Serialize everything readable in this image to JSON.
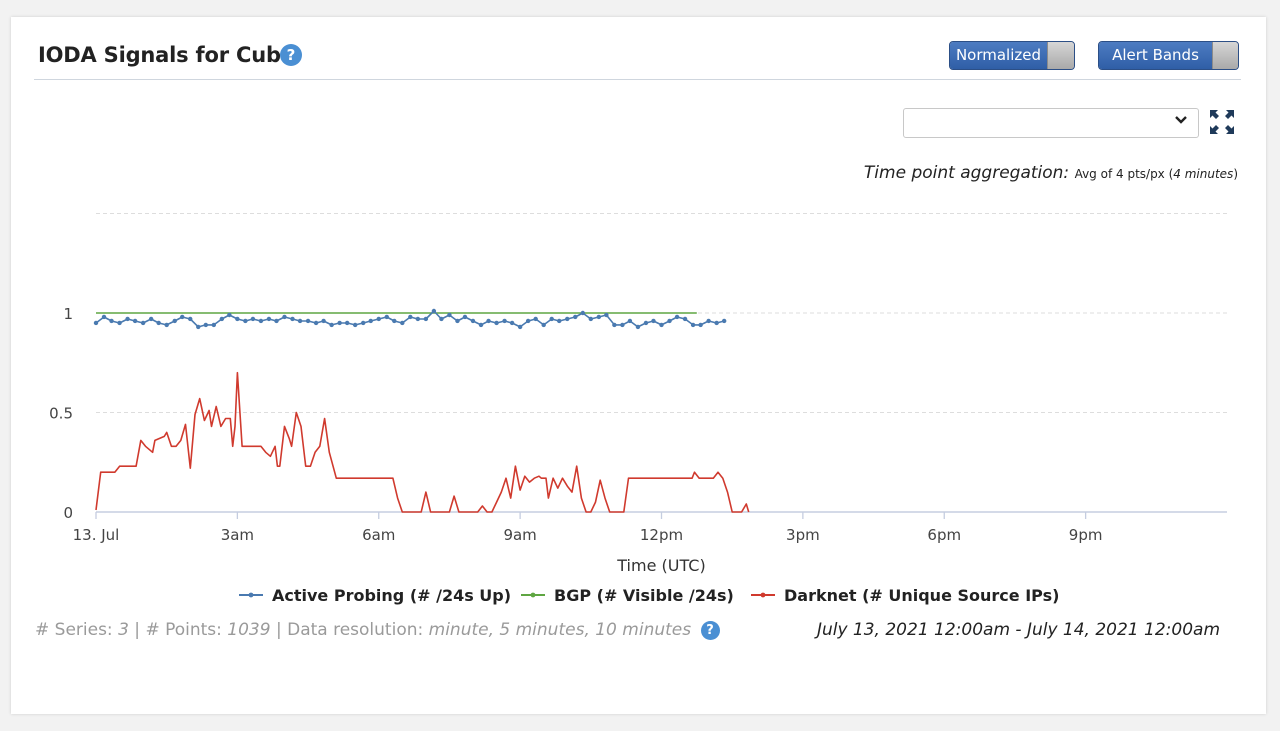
{
  "header": {
    "title": "IODA Signals for Cuba",
    "help_glyph": "?",
    "toggles": [
      {
        "label": "Normalized",
        "state": "on"
      },
      {
        "label": "Alert Bands",
        "state": "on"
      }
    ],
    "select_value": "",
    "expand_icon": "fullscreen-expand-icon"
  },
  "aggregation": {
    "label": "Time point aggregation:",
    "value_prefix": "Avg of 4 pts/px (",
    "value_italic": "4 minutes",
    "value_suffix": ")"
  },
  "footer": {
    "series_label": "# Series:",
    "series_value": "3",
    "points_label": "# Points:",
    "points_value": "1039",
    "resolution_label": "Data resolution:",
    "resolution_value": "minute, 5 minutes, 10 minutes",
    "separator": "|",
    "date_range": "July 13, 2021 12:00am - July 14, 2021 12:00am"
  },
  "colors": {
    "active_probing": "#4a7ab0",
    "bgp": "#5fa642",
    "darknet": "#d03a2e",
    "accent": "#3a67ad",
    "grid": "#dddddd"
  },
  "chart_data": {
    "type": "line",
    "xlabel": "Time (UTC)",
    "ylabel": "",
    "x_unit": "hours since 13. Jul 00:00 UTC",
    "xlim": [
      0,
      24
    ],
    "ylim": [
      0,
      1
    ],
    "x_ticks": [
      {
        "x": 0,
        "label": "13. Jul"
      },
      {
        "x": 3,
        "label": "3am"
      },
      {
        "x": 6,
        "label": "6am"
      },
      {
        "x": 9,
        "label": "9am"
      },
      {
        "x": 12,
        "label": "12pm"
      },
      {
        "x": 15,
        "label": "3pm"
      },
      {
        "x": 18,
        "label": "6pm"
      },
      {
        "x": 21,
        "label": "9pm"
      }
    ],
    "y_ticks": [
      {
        "y": 0,
        "label": "0"
      },
      {
        "y": 0.5,
        "label": "0.5"
      },
      {
        "y": 1,
        "label": "1"
      }
    ],
    "grid": true,
    "legend_position": "bottom",
    "series": [
      {
        "name": "Active Probing (# /24s Up)",
        "marker": true,
        "points": [
          [
            0.0,
            0.95
          ],
          [
            0.17,
            0.98
          ],
          [
            0.33,
            0.96
          ],
          [
            0.5,
            0.95
          ],
          [
            0.67,
            0.97
          ],
          [
            0.83,
            0.96
          ],
          [
            1.0,
            0.95
          ],
          [
            1.17,
            0.97
          ],
          [
            1.33,
            0.95
          ],
          [
            1.5,
            0.94
          ],
          [
            1.67,
            0.96
          ],
          [
            1.83,
            0.98
          ],
          [
            2.0,
            0.97
          ],
          [
            2.17,
            0.93
          ],
          [
            2.33,
            0.94
          ],
          [
            2.5,
            0.94
          ],
          [
            2.67,
            0.97
          ],
          [
            2.83,
            0.99
          ],
          [
            3.0,
            0.97
          ],
          [
            3.17,
            0.96
          ],
          [
            3.33,
            0.97
          ],
          [
            3.5,
            0.96
          ],
          [
            3.67,
            0.97
          ],
          [
            3.83,
            0.96
          ],
          [
            4.0,
            0.98
          ],
          [
            4.17,
            0.97
          ],
          [
            4.33,
            0.96
          ],
          [
            4.5,
            0.96
          ],
          [
            4.67,
            0.95
          ],
          [
            4.83,
            0.96
          ],
          [
            5.0,
            0.94
          ],
          [
            5.17,
            0.95
          ],
          [
            5.33,
            0.95
          ],
          [
            5.5,
            0.94
          ],
          [
            5.67,
            0.95
          ],
          [
            5.83,
            0.96
          ],
          [
            6.0,
            0.97
          ],
          [
            6.17,
            0.98
          ],
          [
            6.33,
            0.96
          ],
          [
            6.5,
            0.95
          ],
          [
            6.67,
            0.98
          ],
          [
            6.83,
            0.97
          ],
          [
            7.0,
            0.97
          ],
          [
            7.17,
            1.01
          ],
          [
            7.33,
            0.97
          ],
          [
            7.5,
            0.99
          ],
          [
            7.67,
            0.96
          ],
          [
            7.83,
            0.98
          ],
          [
            8.0,
            0.96
          ],
          [
            8.17,
            0.94
          ],
          [
            8.33,
            0.96
          ],
          [
            8.5,
            0.95
          ],
          [
            8.67,
            0.96
          ],
          [
            8.83,
            0.95
          ],
          [
            9.0,
            0.93
          ],
          [
            9.17,
            0.96
          ],
          [
            9.33,
            0.97
          ],
          [
            9.5,
            0.94
          ],
          [
            9.67,
            0.97
          ],
          [
            9.83,
            0.96
          ],
          [
            10.0,
            0.97
          ],
          [
            10.17,
            0.98
          ],
          [
            10.33,
            1.0
          ],
          [
            10.5,
            0.97
          ],
          [
            10.67,
            0.98
          ],
          [
            10.83,
            0.99
          ],
          [
            11.0,
            0.94
          ],
          [
            11.17,
            0.94
          ],
          [
            11.33,
            0.96
          ],
          [
            11.5,
            0.93
          ],
          [
            11.67,
            0.95
          ],
          [
            11.83,
            0.96
          ],
          [
            12.0,
            0.94
          ],
          [
            12.17,
            0.96
          ],
          [
            12.33,
            0.98
          ],
          [
            12.5,
            0.97
          ],
          [
            12.67,
            0.94
          ],
          [
            12.83,
            0.94
          ],
          [
            13.0,
            0.96
          ],
          [
            13.17,
            0.95
          ],
          [
            13.33,
            0.96
          ]
        ]
      },
      {
        "name": "BGP (# Visible /24s)",
        "marker": false,
        "points": [
          [
            0.0,
            1.0
          ],
          [
            12.75,
            1.0
          ]
        ]
      },
      {
        "name": "Darknet (# Unique Source IPs)",
        "marker": false,
        "points": [
          [
            0.0,
            0.01
          ],
          [
            0.1,
            0.2
          ],
          [
            0.4,
            0.2
          ],
          [
            0.5,
            0.23
          ],
          [
            0.7,
            0.23
          ],
          [
            0.75,
            0.23
          ],
          [
            0.85,
            0.23
          ],
          [
            0.95,
            0.36
          ],
          [
            1.05,
            0.33
          ],
          [
            1.2,
            0.3
          ],
          [
            1.25,
            0.36
          ],
          [
            1.35,
            0.37
          ],
          [
            1.45,
            0.38
          ],
          [
            1.5,
            0.4
          ],
          [
            1.6,
            0.33
          ],
          [
            1.7,
            0.33
          ],
          [
            1.8,
            0.36
          ],
          [
            1.9,
            0.44
          ],
          [
            2.0,
            0.22
          ],
          [
            2.1,
            0.49
          ],
          [
            2.2,
            0.57
          ],
          [
            2.3,
            0.46
          ],
          [
            2.4,
            0.51
          ],
          [
            2.45,
            0.43
          ],
          [
            2.55,
            0.53
          ],
          [
            2.65,
            0.43
          ],
          [
            2.75,
            0.47
          ],
          [
            2.85,
            0.47
          ],
          [
            2.9,
            0.33
          ],
          [
            2.95,
            0.43
          ],
          [
            3.0,
            0.7
          ],
          [
            3.1,
            0.33
          ],
          [
            3.4,
            0.33
          ],
          [
            3.5,
            0.33
          ],
          [
            3.6,
            0.3
          ],
          [
            3.7,
            0.28
          ],
          [
            3.8,
            0.33
          ],
          [
            3.85,
            0.23
          ],
          [
            3.9,
            0.23
          ],
          [
            4.0,
            0.43
          ],
          [
            4.1,
            0.37
          ],
          [
            4.15,
            0.33
          ],
          [
            4.25,
            0.5
          ],
          [
            4.35,
            0.43
          ],
          [
            4.45,
            0.23
          ],
          [
            4.55,
            0.23
          ],
          [
            4.65,
            0.3
          ],
          [
            4.75,
            0.33
          ],
          [
            4.85,
            0.47
          ],
          [
            4.95,
            0.3
          ],
          [
            5.1,
            0.17
          ],
          [
            5.5,
            0.17
          ],
          [
            5.9,
            0.17
          ],
          [
            6.3,
            0.17
          ],
          [
            6.4,
            0.07
          ],
          [
            6.5,
            0.0
          ],
          [
            6.9,
            0.0
          ],
          [
            7.0,
            0.1
          ],
          [
            7.1,
            0.0
          ],
          [
            7.5,
            0.0
          ],
          [
            7.6,
            0.08
          ],
          [
            7.7,
            0.0
          ],
          [
            8.1,
            0.0
          ],
          [
            8.2,
            0.03
          ],
          [
            8.3,
            0.0
          ],
          [
            8.4,
            0.0
          ],
          [
            8.5,
            0.05
          ],
          [
            8.6,
            0.1
          ],
          [
            8.7,
            0.17
          ],
          [
            8.8,
            0.07
          ],
          [
            8.9,
            0.23
          ],
          [
            9.0,
            0.11
          ],
          [
            9.1,
            0.18
          ],
          [
            9.2,
            0.15
          ],
          [
            9.3,
            0.17
          ],
          [
            9.4,
            0.18
          ],
          [
            9.45,
            0.17
          ],
          [
            9.55,
            0.17
          ],
          [
            9.6,
            0.07
          ],
          [
            9.7,
            0.17
          ],
          [
            9.8,
            0.12
          ],
          [
            9.9,
            0.17
          ],
          [
            10.0,
            0.13
          ],
          [
            10.1,
            0.1
          ],
          [
            10.2,
            0.23
          ],
          [
            10.3,
            0.07
          ],
          [
            10.4,
            0.0
          ],
          [
            10.5,
            0.0
          ],
          [
            10.6,
            0.05
          ],
          [
            10.7,
            0.16
          ],
          [
            10.8,
            0.07
          ],
          [
            10.9,
            0.0
          ],
          [
            11.0,
            0.0
          ],
          [
            11.2,
            0.0
          ],
          [
            11.3,
            0.17
          ],
          [
            11.5,
            0.17
          ],
          [
            12.0,
            0.17
          ],
          [
            12.5,
            0.17
          ],
          [
            12.65,
            0.17
          ],
          [
            12.7,
            0.2
          ],
          [
            12.8,
            0.17
          ],
          [
            13.0,
            0.17
          ],
          [
            13.1,
            0.17
          ],
          [
            13.2,
            0.2
          ],
          [
            13.3,
            0.17
          ],
          [
            13.4,
            0.1
          ],
          [
            13.5,
            0.0
          ],
          [
            13.55,
            0.0
          ],
          [
            13.7,
            0.0
          ],
          [
            13.8,
            0.04
          ],
          [
            13.85,
            0.0
          ]
        ]
      }
    ]
  }
}
